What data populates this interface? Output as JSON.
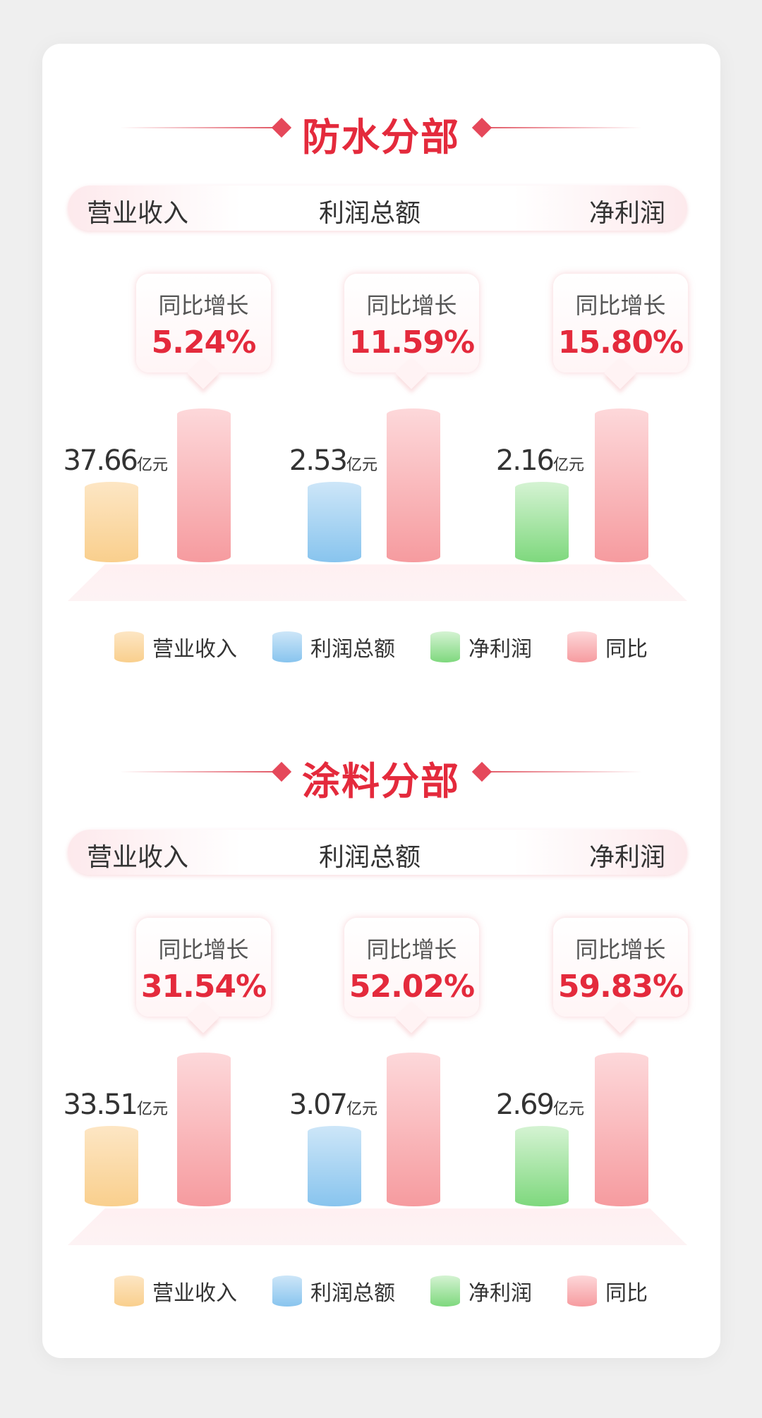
{
  "colors": {
    "title": "#e42a3c",
    "revenue": "#f9cf8d",
    "total_profit": "#88c4ee",
    "net_profit": "#7ed87d",
    "yoy": "#f69b9f"
  },
  "legend": [
    "营业收入",
    "利润总额",
    "净利润",
    "同比"
  ],
  "chart_data": [
    {
      "type": "bar",
      "title": "防水分部",
      "categories": [
        "营业收入",
        "利润总额",
        "净利润"
      ],
      "header_labels": [
        "营业收入",
        "利润总额",
        "净利润"
      ],
      "values": [
        "37.66",
        "2.53",
        "2.16"
      ],
      "unit": "亿元",
      "yoy_label": "同比增长",
      "yoy": [
        "5.24%",
        "11.59%",
        "15.80%"
      ],
      "legend": [
        "营业收入",
        "利润总额",
        "净利润",
        "同比"
      ]
    },
    {
      "type": "bar",
      "title": "涂料分部",
      "categories": [
        "营业收入",
        "利润总额",
        "净利润"
      ],
      "header_labels": [
        "营业收入",
        "利润总额",
        "净利润"
      ],
      "values": [
        "33.51",
        "3.07",
        "2.69"
      ],
      "unit": "亿元",
      "yoy_label": "同比增长",
      "yoy": [
        "31.54%",
        "52.02%",
        "59.83%"
      ],
      "legend": [
        "营业收入",
        "利润总额",
        "净利润",
        "同比"
      ]
    }
  ]
}
